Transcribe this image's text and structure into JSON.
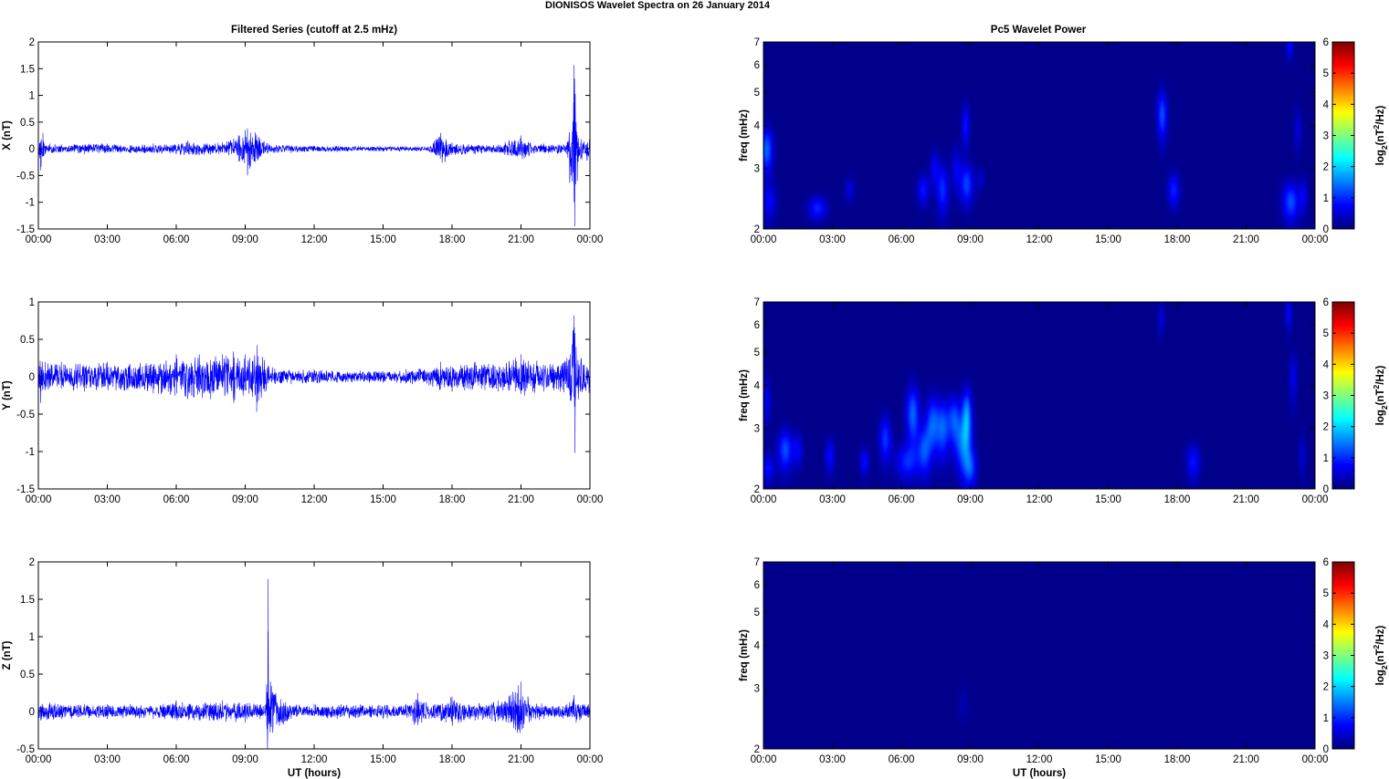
{
  "figure": {
    "title": "DIONISOS Wavelet Spectra on 26 January   2014",
    "left_column_title": "Filtered Series (cutoff at 2.5 mHz)",
    "right_column_title": "Pc5 Wavelet Power",
    "xlabel": "UT (hours)"
  },
  "colors": {
    "series_line": "#0000ff",
    "colormap": "jet",
    "background": "#ffffff",
    "axes": "#000000"
  },
  "chart_data": [
    {
      "id": "x-series",
      "type": "line",
      "title": "Filtered Series (cutoff at 2.5 mHz)",
      "ylabel": "X (nT)",
      "xlabel": "",
      "x_ticks": [
        "00:00",
        "03:00",
        "06:00",
        "09:00",
        "12:00",
        "15:00",
        "18:00",
        "21:00",
        "00:00"
      ],
      "xlim": [
        0,
        24
      ],
      "ylim": [
        -1.5,
        2
      ],
      "y_ticks": [
        "-1.5",
        "-1",
        "-0.5",
        "0",
        "0.5",
        "1",
        "1.5",
        "2"
      ],
      "y_tick_values": [
        -1.5,
        -1,
        -0.5,
        0,
        0.5,
        1,
        1.5,
        2
      ],
      "series": [
        {
          "x": [
            0,
            0.1,
            0.2,
            0.3,
            0.5,
            1,
            2,
            3,
            4,
            5,
            6,
            6.5,
            7,
            8,
            9,
            9.1,
            10,
            11,
            12,
            13,
            14,
            15,
            16,
            17,
            17.5,
            17.7,
            18,
            19,
            20,
            21,
            21.2,
            22,
            23,
            23.3,
            23.35,
            23.4,
            23.45,
            23.5,
            23.6,
            24
          ],
          "y": [
            0.2,
            -0.4,
            0.3,
            -0.1,
            0.1,
            0.08,
            -0.1,
            0.1,
            -0.08,
            0.1,
            -0.1,
            0.15,
            -0.12,
            0.12,
            0.35,
            -0.5,
            0.1,
            -0.08,
            0.06,
            -0.06,
            0.05,
            -0.05,
            0.05,
            -0.05,
            0.3,
            -0.25,
            0.12,
            -0.1,
            0.08,
            0.25,
            -0.15,
            0.1,
            -0.1,
            1.57,
            -1.45,
            0.5,
            -0.6,
            0.2,
            -0.2,
            0.3
          ]
        }
      ]
    },
    {
      "id": "y-series",
      "type": "line",
      "ylabel": "Y (nT)",
      "xlabel": "",
      "x_ticks": [
        "00:00",
        "03:00",
        "06:00",
        "09:00",
        "12:00",
        "15:00",
        "18:00",
        "21:00",
        "00:00"
      ],
      "xlim": [
        0,
        24
      ],
      "ylim": [
        -1.5,
        1
      ],
      "y_ticks": [
        "-1.5",
        "-1",
        "-0.5",
        "0",
        "0.5",
        "1"
      ],
      "y_tick_values": [
        -1.5,
        -1,
        -0.5,
        0,
        0.5,
        1
      ],
      "series": [
        {
          "x": [
            0,
            0.1,
            0.3,
            1,
            2,
            3,
            5,
            6,
            6.5,
            7,
            7.5,
            8,
            8.5,
            9,
            9.5,
            10,
            11,
            12,
            13,
            14,
            15,
            16,
            17,
            17.5,
            18,
            19,
            20,
            21,
            22,
            23,
            23.3,
            23.35,
            23.4,
            23.5,
            24
          ],
          "y": [
            0.2,
            -0.35,
            0.2,
            0.2,
            -0.2,
            0.2,
            -0.22,
            0.3,
            -0.3,
            0.3,
            -0.3,
            0.3,
            -0.35,
            0.3,
            -0.47,
            0.15,
            -0.1,
            0.1,
            -0.08,
            0.08,
            -0.08,
            0.1,
            -0.12,
            0.2,
            -0.2,
            0.2,
            -0.2,
            0.3,
            -0.2,
            0.25,
            0.82,
            -1.02,
            0.4,
            -0.3,
            0.25
          ]
        }
      ]
    },
    {
      "id": "z-series",
      "type": "line",
      "ylabel": "Z (nT)",
      "xlabel": "UT (hours)",
      "x_ticks": [
        "00:00",
        "03:00",
        "06:00",
        "09:00",
        "12:00",
        "15:00",
        "18:00",
        "21:00",
        "00:00"
      ],
      "xlim": [
        0,
        24
      ],
      "ylim": [
        -0.5,
        2
      ],
      "y_ticks": [
        "-0.5",
        "0",
        "0.5",
        "1",
        "1.5",
        "2"
      ],
      "y_tick_values": [
        -0.5,
        0,
        0.5,
        1,
        1.5,
        2
      ],
      "series": [
        {
          "x": [
            0,
            0.1,
            0.5,
            1,
            2,
            3,
            4,
            5,
            6,
            7,
            8,
            9,
            9.9,
            10,
            10.05,
            10.1,
            11,
            12,
            13,
            14,
            15,
            16,
            16.5,
            17,
            18,
            19,
            20,
            21,
            21.1,
            21.3,
            22,
            23,
            23.3,
            23.4,
            24
          ],
          "y": [
            0.1,
            -0.12,
            0.12,
            -0.1,
            0.1,
            -0.1,
            0.1,
            -0.1,
            0.15,
            -0.12,
            0.15,
            -0.15,
            0.1,
            1.77,
            -0.15,
            0.4,
            -0.1,
            0.1,
            -0.1,
            0.1,
            -0.1,
            0.1,
            0.25,
            -0.1,
            0.2,
            -0.12,
            0.15,
            0.4,
            -0.22,
            0.2,
            -0.1,
            0.1,
            0.22,
            -0.15,
            0.1
          ]
        }
      ]
    },
    {
      "id": "x-wavelet",
      "type": "heatmap",
      "title": "Pc5 Wavelet Power",
      "ylabel": "freq (mHz)",
      "colorbar_label": "log2(nT2/Hz)",
      "x_ticks": [
        "00:00",
        "03:00",
        "06:00",
        "09:00",
        "12:00",
        "15:00",
        "18:00",
        "21:00",
        "00:00"
      ],
      "xlim": [
        0,
        24
      ],
      "ylim": [
        2,
        7
      ],
      "y_scale": "log",
      "y_ticks": [
        "2",
        "3",
        "4",
        "5",
        "6",
        "7"
      ],
      "y_tick_values": [
        2,
        3,
        4,
        5,
        6,
        7
      ],
      "clim": [
        0,
        6
      ],
      "colorbar_ticks": [
        "0",
        "1",
        "2",
        "3",
        "4",
        "5",
        "6"
      ],
      "blobs": [
        {
          "t": 0.15,
          "f": 3.4,
          "power": 2.6,
          "dt": 0.18,
          "df": 0.35
        },
        {
          "t": 0.25,
          "f": 2.4,
          "power": 1.4,
          "dt": 0.2,
          "df": 0.2
        },
        {
          "t": 2.35,
          "f": 2.3,
          "power": 1.8,
          "dt": 0.28,
          "df": 0.12
        },
        {
          "t": 3.75,
          "f": 2.6,
          "power": 1.0,
          "dt": 0.15,
          "df": 0.15
        },
        {
          "t": 6.95,
          "f": 2.6,
          "power": 1.6,
          "dt": 0.18,
          "df": 0.18
        },
        {
          "t": 7.45,
          "f": 3.0,
          "power": 1.2,
          "dt": 0.15,
          "df": 0.25
        },
        {
          "t": 7.8,
          "f": 2.6,
          "power": 1.9,
          "dt": 0.18,
          "df": 0.3
        },
        {
          "t": 8.4,
          "f": 3.0,
          "power": 1.2,
          "dt": 0.15,
          "df": 0.3
        },
        {
          "t": 8.85,
          "f": 2.7,
          "power": 2.2,
          "dt": 0.2,
          "df": 0.25
        },
        {
          "t": 8.8,
          "f": 4.0,
          "power": 1.6,
          "dt": 0.12,
          "df": 0.4
        },
        {
          "t": 9.45,
          "f": 2.8,
          "power": 0.8,
          "dt": 0.12,
          "df": 0.15
        },
        {
          "t": 17.35,
          "f": 4.3,
          "power": 2.3,
          "dt": 0.15,
          "df": 0.5
        },
        {
          "t": 17.85,
          "f": 2.6,
          "power": 1.8,
          "dt": 0.18,
          "df": 0.2
        },
        {
          "t": 22.9,
          "f": 6.8,
          "power": 1.5,
          "dt": 0.1,
          "df": 0.4
        },
        {
          "t": 22.95,
          "f": 2.4,
          "power": 2.3,
          "dt": 0.25,
          "df": 0.22
        },
        {
          "t": 23.25,
          "f": 3.9,
          "power": 0.9,
          "dt": 0.12,
          "df": 0.4
        },
        {
          "t": 23.5,
          "f": 2.5,
          "power": 1.2,
          "dt": 0.12,
          "df": 0.2
        }
      ]
    },
    {
      "id": "y-wavelet",
      "type": "heatmap",
      "ylabel": "freq (mHz)",
      "colorbar_label": "log2(nT2/Hz)",
      "x_ticks": [
        "00:00",
        "03:00",
        "06:00",
        "09:00",
        "12:00",
        "15:00",
        "18:00",
        "21:00",
        "00:00"
      ],
      "xlim": [
        0,
        24
      ],
      "ylim": [
        2,
        7
      ],
      "y_scale": "log",
      "y_ticks": [
        "2",
        "3",
        "4",
        "5",
        "6",
        "7"
      ],
      "y_tick_values": [
        2,
        3,
        4,
        5,
        6,
        7
      ],
      "clim": [
        0,
        6
      ],
      "colorbar_ticks": [
        "0",
        "1",
        "2",
        "3",
        "4",
        "5",
        "6"
      ],
      "blobs": [
        {
          "t": 0.15,
          "f": 3.6,
          "power": 1.2,
          "dt": 0.12,
          "df": 0.4
        },
        {
          "t": 0.2,
          "f": 2.3,
          "power": 1.5,
          "dt": 0.2,
          "df": 0.15
        },
        {
          "t": 0.95,
          "f": 2.6,
          "power": 2.3,
          "dt": 0.22,
          "df": 0.25
        },
        {
          "t": 1.5,
          "f": 2.6,
          "power": 1.3,
          "dt": 0.15,
          "df": 0.2
        },
        {
          "t": 2.9,
          "f": 2.5,
          "power": 1.5,
          "dt": 0.15,
          "df": 0.2
        },
        {
          "t": 4.4,
          "f": 2.4,
          "power": 1.5,
          "dt": 0.15,
          "df": 0.15
        },
        {
          "t": 5.3,
          "f": 2.8,
          "power": 2.0,
          "dt": 0.18,
          "df": 0.3
        },
        {
          "t": 6.25,
          "f": 2.4,
          "power": 1.8,
          "dt": 0.35,
          "df": 0.2
        },
        {
          "t": 6.5,
          "f": 3.3,
          "power": 2.6,
          "dt": 0.2,
          "df": 0.45
        },
        {
          "t": 7.0,
          "f": 2.6,
          "power": 2.2,
          "dt": 0.2,
          "df": 0.3
        },
        {
          "t": 7.35,
          "f": 3.1,
          "power": 2.4,
          "dt": 0.2,
          "df": 0.4
        },
        {
          "t": 7.8,
          "f": 3.0,
          "power": 2.4,
          "dt": 0.2,
          "df": 0.4
        },
        {
          "t": 8.3,
          "f": 3.2,
          "power": 2.2,
          "dt": 0.2,
          "df": 0.35
        },
        {
          "t": 8.7,
          "f": 2.7,
          "power": 2.6,
          "dt": 0.25,
          "df": 0.35
        },
        {
          "t": 8.85,
          "f": 3.3,
          "power": 3.0,
          "dt": 0.15,
          "df": 0.4
        },
        {
          "t": 9.0,
          "f": 2.3,
          "power": 2.0,
          "dt": 0.2,
          "df": 0.2
        },
        {
          "t": 17.3,
          "f": 6.3,
          "power": 1.0,
          "dt": 0.1,
          "df": 0.5
        },
        {
          "t": 18.7,
          "f": 2.4,
          "power": 1.6,
          "dt": 0.2,
          "df": 0.2
        },
        {
          "t": 22.85,
          "f": 6.5,
          "power": 1.4,
          "dt": 0.1,
          "df": 0.5
        },
        {
          "t": 23.05,
          "f": 4.2,
          "power": 1.2,
          "dt": 0.12,
          "df": 0.5
        },
        {
          "t": 23.45,
          "f": 2.5,
          "power": 0.8,
          "dt": 0.12,
          "df": 0.25
        }
      ]
    },
    {
      "id": "z-wavelet",
      "type": "heatmap",
      "xlabel": "UT (hours)",
      "ylabel": "freq (mHz)",
      "colorbar_label": "log2(nT2/Hz)",
      "x_ticks": [
        "00:00",
        "03:00",
        "06:00",
        "09:00",
        "12:00",
        "15:00",
        "18:00",
        "21:00",
        "00:00"
      ],
      "xlim": [
        0,
        24
      ],
      "ylim": [
        2,
        7
      ],
      "y_scale": "log",
      "y_ticks": [
        "2",
        "3",
        "4",
        "5",
        "6",
        "7"
      ],
      "y_tick_values": [
        2,
        3,
        4,
        5,
        6,
        7
      ],
      "clim": [
        0,
        6
      ],
      "colorbar_ticks": [
        "0",
        "1",
        "2",
        "3",
        "4",
        "5",
        "6"
      ],
      "blobs": [
        {
          "t": 8.7,
          "f": 2.7,
          "power": 0.5,
          "dt": 0.15,
          "df": 0.2
        }
      ]
    }
  ]
}
